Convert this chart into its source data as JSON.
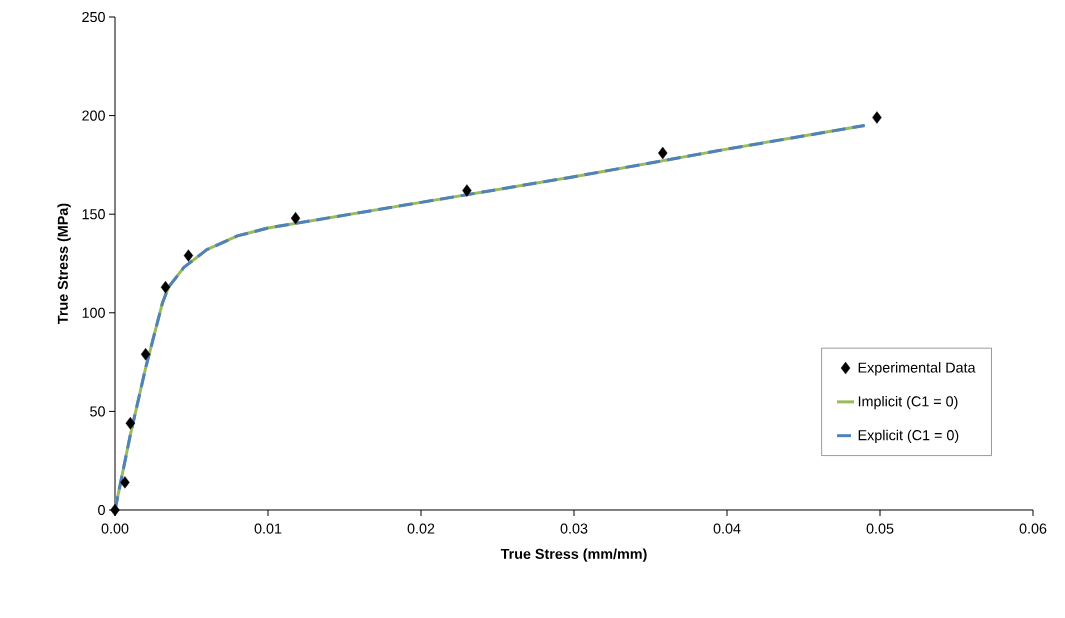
{
  "chart_data": {
    "type": "line",
    "xlabel": "True Stress (mm/mm)",
    "ylabel": "True Stress (MPa)",
    "xlim": [
      0,
      0.06
    ],
    "ylim": [
      0,
      250
    ],
    "xticks": [
      {
        "value": 0,
        "label": "0.00"
      },
      {
        "value": 0.01,
        "label": "0.01"
      },
      {
        "value": 0.02,
        "label": "0.02"
      },
      {
        "value": 0.03,
        "label": "0.03"
      },
      {
        "value": 0.04,
        "label": "0.04"
      },
      {
        "value": 0.05,
        "label": "0.05"
      },
      {
        "value": 0.06,
        "label": "0.06"
      }
    ],
    "yticks": [
      0,
      50,
      100,
      150,
      200,
      250
    ],
    "grid": false,
    "legend": "bottom right",
    "series": [
      {
        "name": "Experimental Data",
        "type": "scatter",
        "marker": "diamond",
        "color": "#000000",
        "x": [
          0,
          0.00065,
          0.001,
          0.002,
          0.0033,
          0.0048,
          0.0118,
          0.023,
          0.0358,
          0.0498
        ],
        "values": [
          0,
          14,
          44,
          79,
          113,
          129,
          148,
          162,
          181,
          199
        ]
      },
      {
        "name": "Implicit (C1 = 0)",
        "line_style": "solid",
        "color": "#9bbb59",
        "x": [
          0,
          0.001,
          0.002,
          0.0031,
          0.0035,
          0.0045,
          0.006,
          0.008,
          0.01,
          0.02,
          0.03,
          0.04,
          0.049
        ],
        "values": [
          0,
          38,
          72,
          105,
          113,
          123,
          132,
          139,
          143,
          156,
          169,
          183,
          195
        ]
      },
      {
        "name": "Explicit (C1 = 0)",
        "line_style": "dashed",
        "color": "#4f81bd",
        "x": [
          0,
          0.001,
          0.002,
          0.0031,
          0.0035,
          0.0045,
          0.006,
          0.008,
          0.01,
          0.02,
          0.03,
          0.04,
          0.049
        ],
        "values": [
          0,
          38,
          72,
          105,
          113,
          123,
          132,
          139,
          143,
          156,
          169,
          183,
          195
        ]
      }
    ]
  }
}
